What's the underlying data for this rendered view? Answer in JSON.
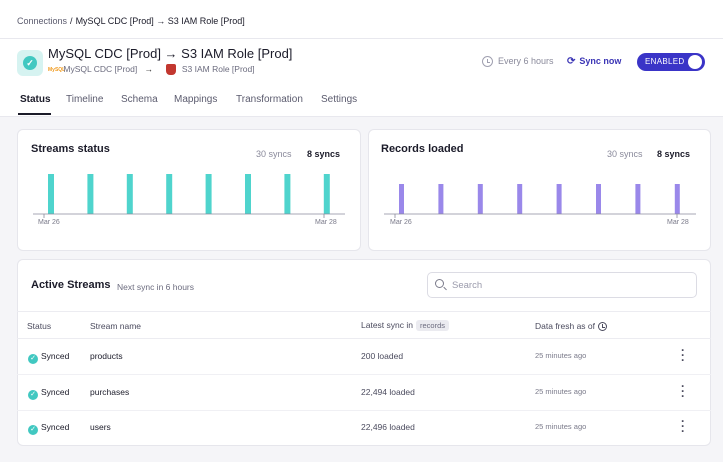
{
  "breadcrumb": {
    "root": "Connections",
    "separator": "/",
    "current": "MySQL CDC [Prod] → S3 IAM Role [Prod]"
  },
  "connection": {
    "title": "MySQL CDC [Prod] → S3 IAM Role [Prod]",
    "source_name": "MySQL CDC [Prod]",
    "source_logo": "MySQL",
    "arrow": "→",
    "destination_name": "S3 IAM Role [Prod]",
    "status_icon": "check-icon"
  },
  "controls": {
    "schedule": "Every 6 hours",
    "sync_now": "Sync now",
    "enabled_label": "ENABLED"
  },
  "tabs": [
    {
      "label": "Status",
      "active": true
    },
    {
      "label": "Timeline"
    },
    {
      "label": "Schema"
    },
    {
      "label": "Mappings"
    },
    {
      "label": "Transformation"
    },
    {
      "label": "Settings"
    }
  ],
  "colors": {
    "accent": "#3a34c7",
    "streams_bar": "#4fd4cd",
    "records_bar": "#9a88ea",
    "synced": "#41c8c1"
  },
  "streams_status": {
    "title": "Streams status",
    "total_syncs": "30 syncs",
    "shown_syncs": "8 syncs",
    "x_start": "Mar 26",
    "x_end": "Mar 28"
  },
  "records_loaded": {
    "title": "Records loaded",
    "total_syncs": "30 syncs",
    "shown_syncs": "8 syncs",
    "x_start": "Mar 26",
    "x_end": "Mar 28"
  },
  "chart_data": [
    {
      "type": "bar",
      "title": "Streams status",
      "values": [
        1,
        1,
        1,
        1,
        1,
        1,
        1,
        1
      ]
    },
    {
      "type": "bar",
      "title": "Records loaded",
      "values": [
        1,
        1,
        1,
        1,
        1,
        1,
        1,
        1
      ]
    }
  ],
  "active_streams": {
    "title": "Active Streams",
    "subtitle": "Next sync in 6 hours",
    "search_placeholder": "Search",
    "columns": {
      "status": "Status",
      "stream_name": "Stream name",
      "latest_sync": "Latest sync in",
      "latest_sync_unit": "records",
      "data_fresh": "Data fresh as of"
    },
    "rows": [
      {
        "status": "Synced",
        "name": "products",
        "loaded": "200 loaded",
        "fresh": "25 minutes ago"
      },
      {
        "status": "Synced",
        "name": "purchases",
        "loaded": "22,494 loaded",
        "fresh": "25 minutes ago"
      },
      {
        "status": "Synced",
        "name": "users",
        "loaded": "22,496 loaded",
        "fresh": "25 minutes ago"
      }
    ]
  }
}
